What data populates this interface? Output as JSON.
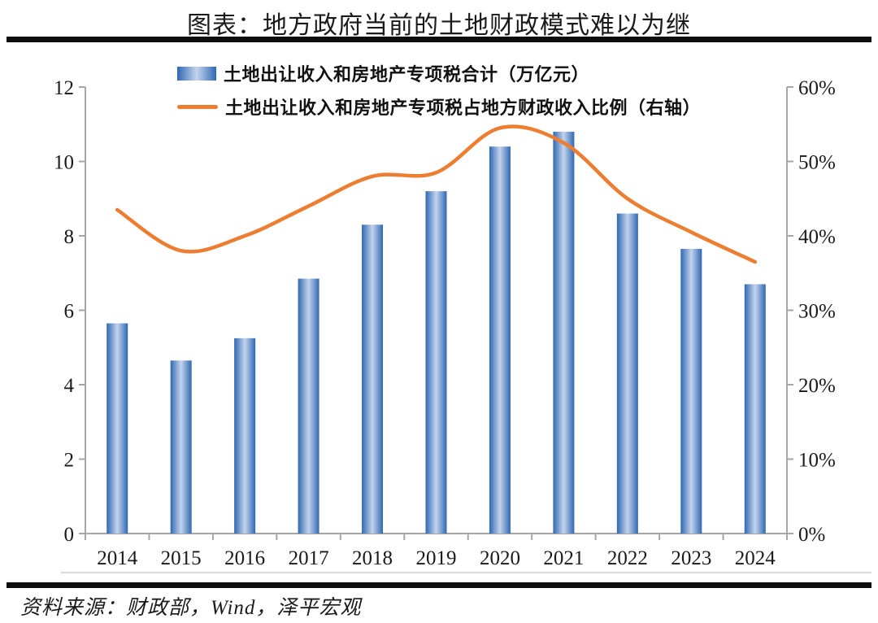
{
  "header": {
    "title": "图表：地方政府当前的土地财政模式难以为继"
  },
  "legend": {
    "items": [
      {
        "label": "土地出让收入和房地产专项税合计（万亿元）",
        "marker": "bar-swatch"
      },
      {
        "label": "土地出让收入和房地产专项税占地方财政收入比例（右轴）",
        "marker": "line-swatch"
      }
    ]
  },
  "footer": {
    "source": "资料来源：财政部，Wind，泽平宏观"
  },
  "colors": {
    "bar_edge": "#2E68B1",
    "bar_center": "#C3D4EC",
    "line": "#ED7D31",
    "axis": "#A6A6A6",
    "text": "#1a1a1a",
    "divider": "#0d0d0d"
  },
  "chart_data": {
    "type": "bar",
    "subtype": "combo bar + smooth line, dual axis",
    "title": "图表：地方政府当前的土地财政模式难以为继",
    "categories": [
      "2014",
      "2015",
      "2016",
      "2017",
      "2018",
      "2019",
      "2020",
      "2021",
      "2022",
      "2023",
      "2024"
    ],
    "series": [
      {
        "name": "土地出让收入和房地产专项税合计（万亿元）",
        "type": "bar",
        "axis": "left",
        "unit": "万亿元",
        "values": [
          5.65,
          4.65,
          5.25,
          6.85,
          8.3,
          9.2,
          10.4,
          10.8,
          8.6,
          7.65,
          6.7
        ]
      },
      {
        "name": "土地出让收入和房地产专项税占地方财政收入比例（右轴）",
        "type": "line",
        "axis": "right",
        "unit": "%",
        "values": [
          43.5,
          38,
          40,
          44,
          48,
          48.5,
          54.5,
          52.5,
          45,
          40.5,
          36.5
        ]
      }
    ],
    "left_axis": {
      "min": 0,
      "max": 12,
      "ticks": [
        "0",
        "2",
        "4",
        "6",
        "8",
        "10",
        "12"
      ]
    },
    "right_axis": {
      "min": 0,
      "max": 60,
      "ticks": [
        "0%",
        "10%",
        "20%",
        "30%",
        "40%",
        "50%",
        "60%"
      ]
    },
    "xlabel": "",
    "ylabel": "",
    "grid": "off",
    "legend_position": "top-left-inside"
  }
}
